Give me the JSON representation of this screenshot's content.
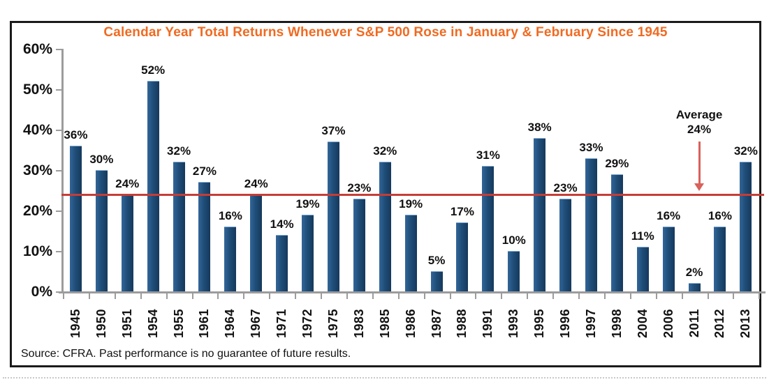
{
  "chart_data": {
    "type": "bar",
    "title": "Calendar Year Total Returns Whenever S&P 500 Rose in January & February Since 1945",
    "title_color": "#F06A21",
    "categories": [
      "1945",
      "1950",
      "1951",
      "1954",
      "1955",
      "1961",
      "1964",
      "1967",
      "1971",
      "1972",
      "1975",
      "1983",
      "1985",
      "1986",
      "1987",
      "1988",
      "1991",
      "1993",
      "1995",
      "1996",
      "1997",
      "1998",
      "2004",
      "2006",
      "2011",
      "2012",
      "2013"
    ],
    "values": [
      36,
      30,
      24,
      52,
      32,
      27,
      16,
      24,
      14,
      19,
      37,
      23,
      32,
      19,
      5,
      17,
      31,
      10,
      38,
      23,
      33,
      29,
      11,
      16,
      2,
      16,
      32
    ],
    "value_label_suffix": "%",
    "bar_color": "#1F4E79",
    "xlabel": "",
    "ylabel": "",
    "ylim": [
      0,
      60
    ],
    "y_ticks": [
      0,
      10,
      20,
      30,
      40,
      50,
      60
    ],
    "y_tick_suffix": "%",
    "grid": false,
    "legend": false,
    "average_line": {
      "value": 24,
      "line_color": "#C43D37",
      "arrow_color": "#D8625B",
      "label_line1": "Average",
      "label_line2": "24%"
    },
    "source": "Source: CFRA. Past performance is no guarantee of future results."
  }
}
